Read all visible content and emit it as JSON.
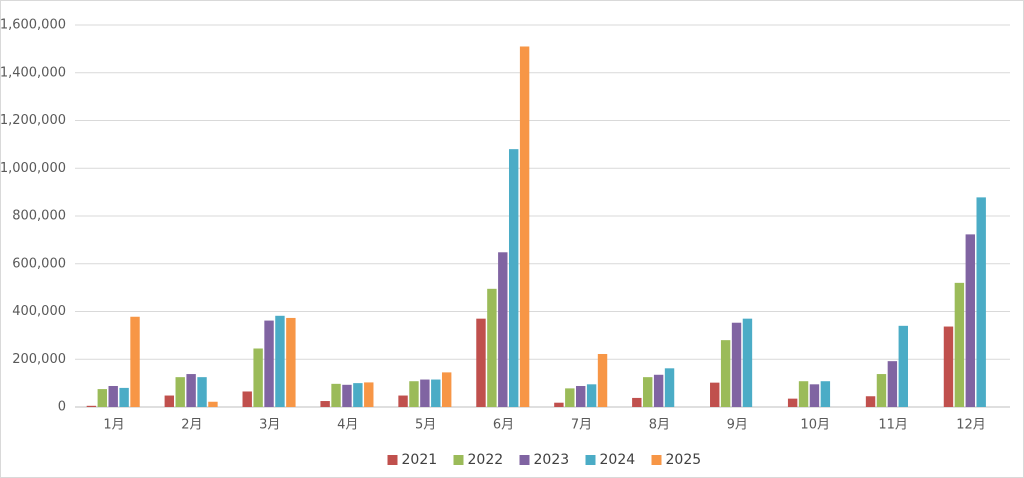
{
  "chart_data": {
    "type": "bar",
    "categories": [
      "1月",
      "2月",
      "3月",
      "4月",
      "5月",
      "6月",
      "7月",
      "8月",
      "9月",
      "10月",
      "11月",
      "12月"
    ],
    "series": [
      {
        "name": "2021",
        "color": "#c0504d",
        "values": [
          5000,
          48000,
          65000,
          25000,
          48000,
          370000,
          18000,
          38000,
          102000,
          35000,
          45000,
          337000
        ]
      },
      {
        "name": "2022",
        "color": "#9bbb59",
        "values": [
          75000,
          125000,
          245000,
          97000,
          108000,
          495000,
          78000,
          125000,
          280000,
          108000,
          138000,
          520000
        ]
      },
      {
        "name": "2023",
        "color": "#8064a2",
        "values": [
          88000,
          138000,
          362000,
          93000,
          115000,
          648000,
          88000,
          135000,
          353000,
          95000,
          192000,
          723000
        ]
      },
      {
        "name": "2024",
        "color": "#4bacc6",
        "values": [
          80000,
          125000,
          382000,
          100000,
          115000,
          1080000,
          95000,
          162000,
          370000,
          108000,
          340000,
          878000
        ]
      },
      {
        "name": "2025",
        "color": "#f79646",
        "values": [
          378000,
          22000,
          373000,
          103000,
          145000,
          1510000,
          222000,
          null,
          null,
          null,
          null,
          null
        ]
      }
    ],
    "ylim": [
      0,
      1600000
    ],
    "yticks": [
      0,
      {
        "value": 200000,
        "label": "200,000"
      },
      {
        "value": 400000,
        "label": "400,000"
      },
      {
        "value": 600000,
        "label": "600,000"
      },
      {
        "value": 800000,
        "label": "800,000"
      },
      {
        "value": 1000000,
        "label": "1,000,000"
      },
      {
        "value": 1200000,
        "label": "1,200,000"
      },
      {
        "value": 1400000,
        "label": "1,400,000"
      },
      {
        "value": 1600000,
        "label": "1,600,000"
      }
    ],
    "grid": true,
    "legend": "bottom"
  }
}
